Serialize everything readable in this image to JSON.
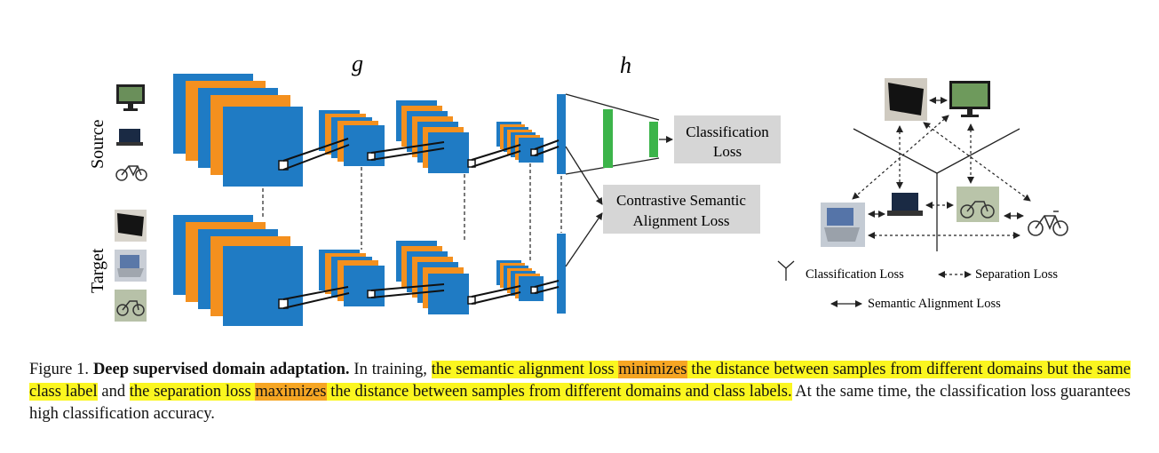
{
  "figure": {
    "labels": {
      "g": "g",
      "h": "h",
      "source": "Source",
      "target": "Target"
    },
    "boxes": {
      "classification_loss": [
        "Classification",
        "Loss"
      ],
      "contrastive_loss": [
        "Contrastive Semantic",
        "Alignment Loss"
      ]
    },
    "legend": {
      "classification": "Classification Loss",
      "separation": "Separation Loss",
      "semantic": "Semantic Alignment Loss"
    },
    "colors": {
      "blue": "#1f7bc4",
      "orange": "#f4901e",
      "green": "#3cb44a",
      "gray_box": "#d6d6d6",
      "highlight_yellow": "#fbf61f",
      "highlight_orange": "#f6a623"
    },
    "icons": {
      "source": [
        "monitor-icon",
        "laptop-icon",
        "bicycle-icon"
      ],
      "target": [
        "monitor-icon",
        "laptop-icon",
        "bicycle-icon"
      ]
    }
  },
  "caption": {
    "label": "Figure 1. ",
    "title": "Deep supervised domain adaptation.",
    "t1": " In training, ",
    "h1": "the semantic alignment loss ",
    "h1o": "minimizes",
    "h2": " the distance between samples from different domains but the same class label",
    "t2": " and ",
    "h3": "the separation loss ",
    "h3o": "maximizes",
    "h4": " the distance between samples from different domains and class labels.",
    "t3": " At the same time, the classification loss guarantees high classification accuracy."
  }
}
